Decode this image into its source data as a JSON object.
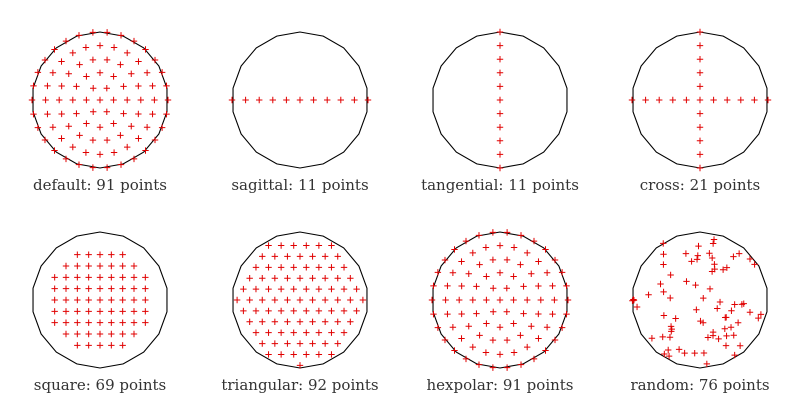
{
  "colors": {
    "aperture": "#000000",
    "marker": "#e00000",
    "caption": "#333333",
    "background": "#ffffff"
  },
  "icon": "plus-marker",
  "panels": [
    {
      "id": "default",
      "caption": "default: 91 points",
      "count": 91,
      "pattern": "hexpolar-rings"
    },
    {
      "id": "sagittal",
      "caption": "sagittal: 11 points",
      "count": 11,
      "pattern": "horizontal-line"
    },
    {
      "id": "tangential",
      "caption": "tangential: 11 points",
      "count": 11,
      "pattern": "vertical-line"
    },
    {
      "id": "cross",
      "caption": "cross: 21 points",
      "count": 21,
      "pattern": "cross"
    },
    {
      "id": "square",
      "caption": "square: 69 points",
      "count": 69,
      "pattern": "square-grid"
    },
    {
      "id": "triangular",
      "caption": "triangular: 92 points",
      "count": 92,
      "pattern": "triangular-grid"
    },
    {
      "id": "hexpolar",
      "caption": "hexpolar: 91 points",
      "count": 91,
      "pattern": "hexpolar-rings"
    },
    {
      "id": "random",
      "caption": "random: 76 points",
      "count": 76,
      "pattern": "random"
    }
  ]
}
